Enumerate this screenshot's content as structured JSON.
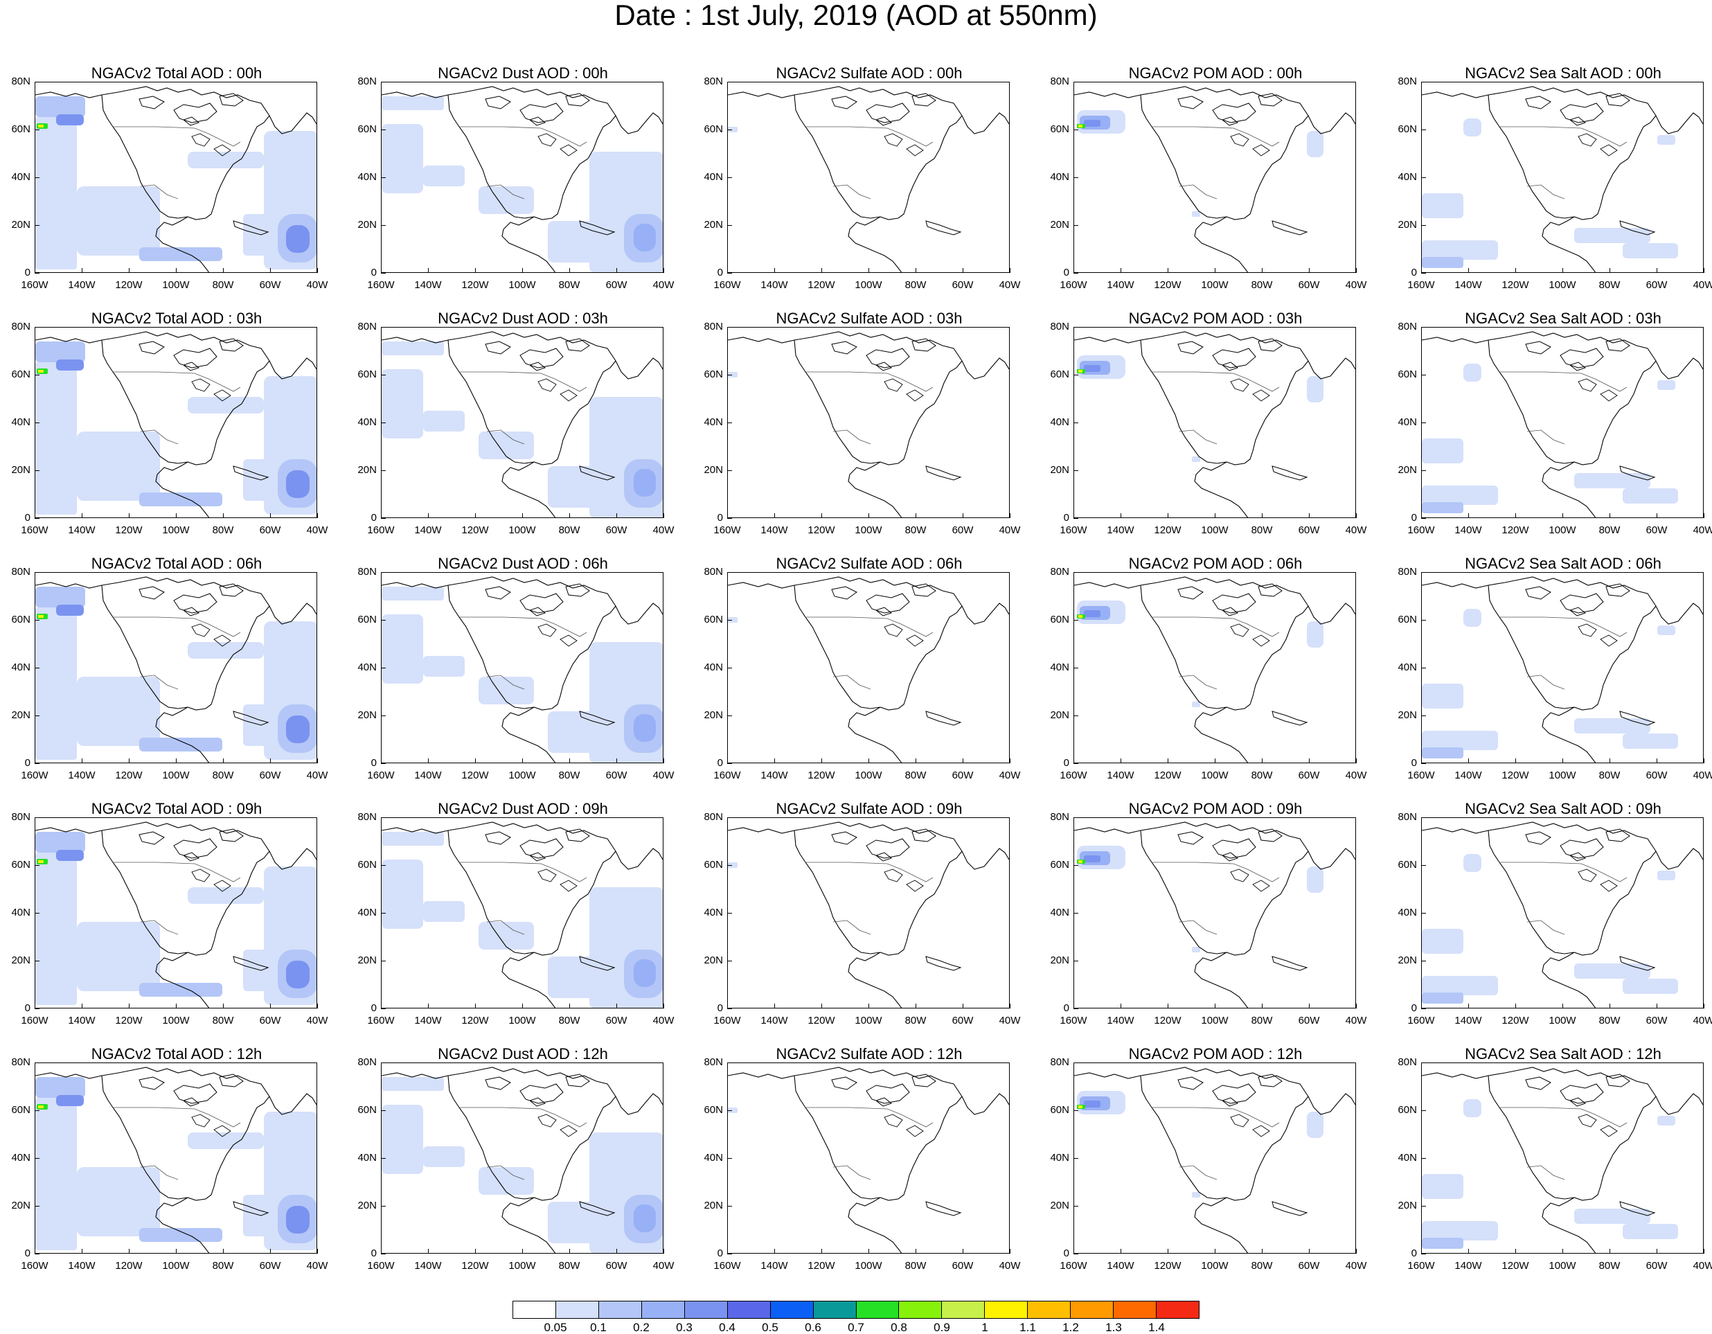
{
  "title": "Date : 1st July, 2019 (AOD at 550nm)",
  "lat_ticks": [
    "80N",
    "60N",
    "40N",
    "20N",
    "0"
  ],
  "lon_ticks": [
    "160W",
    "140W",
    "120W",
    "100W",
    "80W",
    "60W",
    "40W"
  ],
  "rows": [
    "00h",
    "03h",
    "06h",
    "09h",
    "12h"
  ],
  "columns": [
    "total",
    "dust",
    "sulfate",
    "pom",
    "seasalt"
  ],
  "panels": [
    [
      "NGACv2 Total AOD : 00h",
      "NGACv2 Dust AOD : 00h",
      "NGACv2 Sulfate AOD : 00h",
      "NGACv2 POM AOD : 00h",
      "NGACv2 Sea Salt AOD : 00h"
    ],
    [
      "NGACv2 Total AOD : 03h",
      "NGACv2 Dust AOD : 03h",
      "NGACv2 Sulfate AOD : 03h",
      "NGACv2 POM AOD : 03h",
      "NGACv2 Sea Salt AOD : 03h"
    ],
    [
      "NGACv2 Total AOD : 06h",
      "NGACv2 Dust AOD : 06h",
      "NGACv2 Sulfate AOD : 06h",
      "NGACv2 POM AOD : 06h",
      "NGACv2 Sea Salt AOD : 06h"
    ],
    [
      "NGACv2 Total AOD : 09h",
      "NGACv2 Dust AOD : 09h",
      "NGACv2 Sulfate AOD : 09h",
      "NGACv2 POM AOD : 09h",
      "NGACv2 Sea Salt  AOD : 09h"
    ],
    [
      "NGACv2 Total AOD  : 12h",
      "NGACv2 Dust AOD : 12h",
      "NGACv2 Sulfate AOD : 12h",
      "NGACv2 POM  AOD : 12h",
      "NGACv2 Sea Salt  AOD : 12h"
    ]
  ],
  "colorbar": {
    "labels": [
      "0.05",
      "0.1",
      "0.2",
      "0.3",
      "0.4",
      "0.5",
      "0.6",
      "0.7",
      "0.8",
      "0.9",
      "1",
      "1.1",
      "1.2",
      "1.3",
      "1.4"
    ],
    "colors": [
      "#ffffff",
      "#d5e0fa",
      "#b3c6f7",
      "#98b0f5",
      "#7a93f0",
      "#5a67e8",
      "#0b5ff5",
      "#0a9999",
      "#26e026",
      "#86f20c",
      "#c8f04a",
      "#fff200",
      "#ffbf00",
      "#ff9a00",
      "#ff6a00",
      "#f52a14"
    ]
  },
  "fields": {
    "total": {
      "level_colors": [
        "#d5e0fa",
        "#b3c6f7",
        "#7a93f0",
        "#26e026",
        "#fff200"
      ]
    },
    "dust": {
      "level_colors": [
        "#d5e0fa",
        "#b3c6f7",
        "#98b0f5"
      ]
    },
    "sulfate": {
      "level_colors": [
        "#d5e0fa"
      ]
    },
    "pom": {
      "level_colors": [
        "#d5e0fa",
        "#98b0f5",
        "#7a93f0",
        "#26e026",
        "#fff200"
      ]
    },
    "seasalt": {
      "level_colors": [
        "#d5e0fa",
        "#b3c6f7"
      ]
    }
  }
}
